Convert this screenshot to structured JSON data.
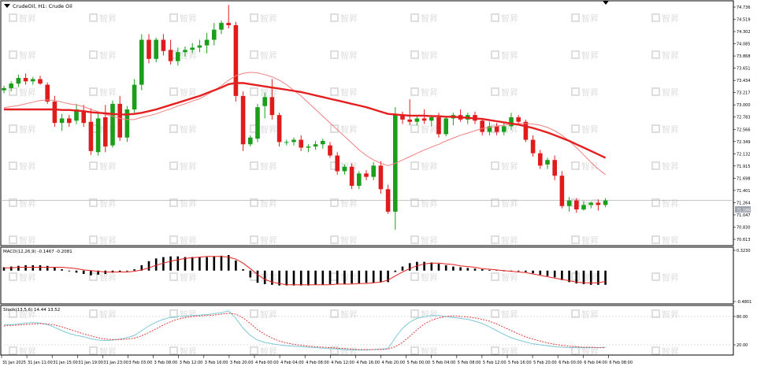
{
  "symbol_title": "CrudeOil, H1: Crude Oil",
  "macd_label": "MACD(12,26,9) -0.1467 -0.2081",
  "stoch_label": "Stoch(13,5,6) 14.44 13.52",
  "watermark_text": "智昇",
  "colors": {
    "bull": "#1b9e1b",
    "bear": "#e01b1b",
    "ma_thick": "#e51f1f",
    "ma_thin": "#f08080",
    "macd_hist": "#000000",
    "macd_signal": "#e51f1f",
    "stoch_main": "#7fc8d8",
    "stoch_signal": "#e04040",
    "watermark": "#dedede",
    "price_box": "#9ea4ad"
  },
  "price_box_label": "71.186",
  "chart_data": [
    {
      "type": "candlestick",
      "name": "price",
      "ylim": [
        70.45,
        74.78
      ],
      "y_ticks": [
        "74.736",
        "74.519",
        "74.302",
        "74.085",
        "73.868",
        "73.651",
        "73.434",
        "73.217",
        "73.000",
        "72.783",
        "72.566",
        "72.349",
        "72.132",
        "71.915",
        "71.698",
        "71.401",
        "71.264",
        "71.047",
        "70.830",
        "70.613"
      ],
      "x_ticks": [
        "31 Jan 2025",
        "31 Jan 11:00",
        "31 Jan 15:00",
        "31 Jan 19:00",
        "31 Jan 23:00",
        "3 Feb 03:00",
        "3 Feb 08:00",
        "3 Feb 12:00",
        "3 Feb 16:00",
        "3 Feb 20:00",
        "4 Feb 00:00",
        "4 Feb 04:00",
        "4 Feb 08:00",
        "4 Feb 12:00",
        "4 Feb 16:00",
        "4 Feb 20:00",
        "5 Feb 00:00",
        "5 Feb 04:00",
        "5 Feb 08:00",
        "5 Feb 12:00",
        "5 Feb 16:00",
        "5 Feb 20:00",
        "6 Feb 00:00",
        "6 Feb 04:00",
        "6 Feb 08:00"
      ],
      "candles": [
        [
          73.2,
          73.28,
          73.15,
          73.24
        ],
        [
          73.24,
          73.36,
          73.18,
          73.32
        ],
        [
          73.32,
          73.48,
          73.26,
          73.42
        ],
        [
          73.42,
          73.5,
          73.3,
          73.36
        ],
        [
          73.36,
          73.44,
          73.3,
          73.4
        ],
        [
          73.4,
          73.46,
          73.3,
          73.32
        ],
        [
          73.3,
          73.34,
          72.96,
          73.0
        ],
        [
          73.0,
          73.1,
          72.55,
          72.62
        ],
        [
          72.62,
          72.78,
          72.48,
          72.7
        ],
        [
          72.7,
          72.76,
          72.55,
          72.62
        ],
        [
          72.66,
          72.96,
          72.6,
          72.86
        ],
        [
          72.84,
          72.94,
          72.55,
          72.62
        ],
        [
          72.64,
          72.88,
          72.05,
          72.12
        ],
        [
          72.1,
          72.8,
          72.04,
          72.7
        ],
        [
          72.72,
          72.94,
          72.1,
          72.2
        ],
        [
          72.22,
          73.02,
          72.18,
          72.96
        ],
        [
          72.96,
          73.1,
          72.3,
          72.36
        ],
        [
          72.36,
          72.92,
          72.28,
          72.86
        ],
        [
          72.86,
          73.4,
          72.8,
          73.3
        ],
        [
          73.3,
          74.2,
          73.2,
          74.1
        ],
        [
          74.1,
          74.2,
          73.68,
          73.76
        ],
        [
          73.76,
          74.14,
          73.7,
          74.1
        ],
        [
          74.1,
          74.2,
          73.82,
          73.9
        ],
        [
          73.92,
          74.1,
          73.66,
          73.72
        ],
        [
          73.72,
          73.96,
          73.64,
          73.88
        ],
        [
          73.88,
          73.98,
          73.8,
          73.92
        ],
        [
          73.92,
          74.04,
          73.86,
          73.96
        ],
        [
          73.96,
          74.1,
          73.88,
          74.0
        ],
        [
          74.0,
          74.22,
          73.86,
          74.1
        ],
        [
          74.1,
          74.4,
          74.0,
          74.28
        ],
        [
          74.28,
          74.44,
          74.2,
          74.4
        ],
        [
          74.4,
          74.72,
          74.3,
          74.36
        ],
        [
          74.36,
          74.42,
          73.0,
          73.1
        ],
        [
          73.1,
          73.18,
          72.12,
          72.24
        ],
        [
          72.24,
          72.4,
          72.2,
          72.36
        ],
        [
          72.34,
          72.96,
          72.28,
          72.9
        ],
        [
          72.92,
          73.16,
          72.7,
          73.08
        ],
        [
          73.08,
          73.4,
          72.68,
          72.76
        ],
        [
          72.76,
          72.8,
          72.2,
          72.28
        ],
        [
          72.28,
          72.32,
          72.22,
          72.28
        ],
        [
          72.28,
          72.36,
          72.22,
          72.32
        ],
        [
          72.32,
          72.4,
          72.12,
          72.18
        ],
        [
          72.18,
          72.24,
          72.1,
          72.2
        ],
        [
          72.2,
          72.3,
          72.14,
          72.24
        ],
        [
          72.24,
          72.34,
          72.16,
          72.3
        ],
        [
          72.22,
          72.28,
          72.0,
          72.04
        ],
        [
          72.04,
          72.1,
          71.7,
          71.76
        ],
        [
          71.76,
          71.88,
          71.7,
          71.84
        ],
        [
          71.84,
          71.9,
          71.44,
          71.5
        ],
        [
          71.5,
          71.76,
          71.44,
          71.72
        ],
        [
          71.72,
          71.78,
          71.6,
          71.66
        ],
        [
          71.66,
          71.92,
          71.6,
          71.86
        ],
        [
          71.86,
          71.94,
          71.36,
          71.44
        ],
        [
          71.44,
          71.52,
          71.0,
          71.04
        ],
        [
          71.04,
          72.9,
          70.72,
          72.76
        ],
        [
          72.76,
          72.82,
          72.6,
          72.68
        ],
        [
          72.68,
          73.04,
          72.58,
          72.64
        ],
        [
          72.64,
          72.74,
          72.58,
          72.7
        ],
        [
          72.7,
          72.86,
          72.6,
          72.66
        ],
        [
          72.66,
          72.76,
          72.56,
          72.72
        ],
        [
          72.72,
          72.8,
          72.36,
          72.42
        ],
        [
          72.42,
          72.74,
          72.38,
          72.7
        ],
        [
          72.7,
          72.8,
          72.58,
          72.76
        ],
        [
          72.76,
          72.86,
          72.64,
          72.68
        ],
        [
          72.68,
          72.8,
          72.6,
          72.76
        ],
        [
          72.76,
          72.82,
          72.6,
          72.66
        ],
        [
          72.66,
          72.7,
          72.4,
          72.46
        ],
        [
          72.46,
          72.64,
          72.4,
          72.56
        ],
        [
          72.56,
          72.62,
          72.4,
          72.46
        ],
        [
          72.46,
          72.64,
          72.4,
          72.56
        ],
        [
          72.56,
          72.8,
          72.5,
          72.72
        ],
        [
          72.72,
          72.76,
          72.6,
          72.64
        ],
        [
          72.64,
          72.68,
          72.28,
          72.32
        ],
        [
          72.32,
          72.4,
          72.02,
          72.08
        ],
        [
          72.08,
          72.14,
          71.8,
          71.86
        ],
        [
          71.88,
          72.0,
          71.8,
          71.96
        ],
        [
          71.96,
          72.04,
          71.6,
          71.68
        ],
        [
          71.68,
          71.76,
          71.1,
          71.14
        ],
        [
          71.14,
          71.3,
          71.04,
          71.24
        ],
        [
          71.24,
          71.28,
          71.02,
          71.08
        ],
        [
          71.08,
          71.22,
          71.06,
          71.16
        ],
        [
          71.16,
          71.22,
          71.1,
          71.2
        ],
        [
          71.2,
          71.26,
          71.06,
          71.16
        ],
        [
          71.16,
          71.28,
          71.12,
          71.24
        ]
      ],
      "ma_slow": [
        72.86,
        72.86,
        72.86,
        72.86,
        72.86,
        72.86,
        72.86,
        72.86,
        72.85,
        72.85,
        72.84,
        72.83,
        72.81,
        72.8,
        72.79,
        72.78,
        72.77,
        72.77,
        72.78,
        72.8,
        72.83,
        72.86,
        72.9,
        72.94,
        72.98,
        73.02,
        73.06,
        73.1,
        73.15,
        73.2,
        73.25,
        73.31,
        73.33,
        73.33,
        73.31,
        73.29,
        73.27,
        73.25,
        73.23,
        73.21,
        73.19,
        73.17,
        73.14,
        73.11,
        73.08,
        73.05,
        73.02,
        72.99,
        72.96,
        72.93,
        72.9,
        72.86,
        72.82,
        72.78,
        72.77,
        72.76,
        72.75,
        72.75,
        72.75,
        72.74,
        72.74,
        72.73,
        72.73,
        72.72,
        72.71,
        72.7,
        72.69,
        72.67,
        72.65,
        72.63,
        72.61,
        72.59,
        72.56,
        72.53,
        72.49,
        72.45,
        72.4,
        72.35,
        72.3,
        72.24,
        72.18,
        72.12,
        72.06,
        72.0
      ],
      "ma_fast": [
        72.89,
        72.91,
        72.93,
        72.96,
        72.99,
        73.02,
        73.03,
        73.02,
        72.99,
        72.96,
        72.94,
        72.91,
        72.86,
        72.82,
        72.77,
        72.74,
        72.7,
        72.68,
        72.68,
        72.72,
        72.75,
        72.78,
        72.83,
        72.87,
        72.92,
        72.96,
        73.01,
        73.05,
        73.12,
        73.2,
        73.28,
        73.38,
        73.46,
        73.5,
        73.52,
        73.51,
        73.48,
        73.44,
        73.38,
        73.3,
        73.2,
        73.1,
        72.98,
        72.86,
        72.74,
        72.62,
        72.5,
        72.38,
        72.26,
        72.14,
        72.04,
        71.96,
        71.9,
        71.86,
        71.9,
        71.96,
        72.02,
        72.08,
        72.14,
        72.19,
        72.24,
        72.3,
        72.35,
        72.4,
        72.44,
        72.48,
        72.52,
        72.54,
        72.56,
        72.58,
        72.6,
        72.61,
        72.61,
        72.6,
        72.58,
        72.54,
        72.48,
        72.4,
        72.3,
        72.18,
        72.05,
        71.92,
        71.8,
        71.7
      ]
    },
    {
      "type": "bar+line",
      "name": "MACD",
      "ylim": [
        -0.4801,
        0.323
      ],
      "y_ticks": [
        "0.3230",
        "-0.4801"
      ],
      "histogram": [
        0.05,
        0.06,
        0.07,
        0.08,
        0.08,
        0.08,
        0.07,
        0.05,
        0.02,
        -0.01,
        -0.03,
        -0.05,
        -0.07,
        -0.06,
        -0.05,
        -0.03,
        -0.02,
        -0.01,
        0.02,
        0.08,
        0.14,
        0.18,
        0.2,
        0.21,
        0.21,
        0.2,
        0.2,
        0.2,
        0.2,
        0.21,
        0.22,
        0.23,
        0.15,
        0.02,
        -0.1,
        -0.18,
        -0.2,
        -0.21,
        -0.22,
        -0.22,
        -0.22,
        -0.22,
        -0.22,
        -0.21,
        -0.21,
        -0.2,
        -0.2,
        -0.2,
        -0.19,
        -0.19,
        -0.18,
        -0.18,
        -0.17,
        -0.17,
        -0.02,
        0.06,
        0.11,
        0.13,
        0.13,
        0.12,
        0.1,
        0.08,
        0.06,
        0.05,
        0.04,
        0.03,
        0.02,
        0.01,
        0.01,
        0.0,
        0.0,
        -0.01,
        -0.02,
        -0.04,
        -0.06,
        -0.08,
        -0.1,
        -0.14,
        -0.17,
        -0.19,
        -0.2,
        -0.21,
        -0.21,
        -0.21
      ],
      "signal": [
        0.04,
        0.04,
        0.05,
        0.05,
        0.05,
        0.05,
        0.05,
        0.05,
        0.05,
        0.04,
        0.03,
        0.01,
        0.0,
        -0.01,
        -0.02,
        -0.02,
        -0.02,
        -0.02,
        -0.01,
        0.01,
        0.04,
        0.08,
        0.11,
        0.14,
        0.16,
        0.18,
        0.19,
        0.2,
        0.21,
        0.21,
        0.21,
        0.2,
        0.17,
        0.11,
        0.03,
        -0.06,
        -0.13,
        -0.17,
        -0.19,
        -0.21,
        -0.21,
        -0.21,
        -0.21,
        -0.21,
        -0.21,
        -0.21,
        -0.2,
        -0.2,
        -0.2,
        -0.19,
        -0.19,
        -0.18,
        -0.17,
        -0.14,
        -0.08,
        -0.02,
        0.03,
        0.07,
        0.1,
        0.11,
        0.11,
        0.1,
        0.09,
        0.07,
        0.06,
        0.05,
        0.03,
        0.02,
        0.01,
        0.0,
        -0.01,
        -0.02,
        -0.03,
        -0.05,
        -0.07,
        -0.09,
        -0.11,
        -0.13,
        -0.15,
        -0.17,
        -0.18,
        -0.18,
        -0.18,
        -0.16
      ]
    },
    {
      "type": "line",
      "name": "Stoch",
      "ylim": [
        0,
        100
      ],
      "y_ticks": [
        "80.00",
        "20.00"
      ],
      "main": [
        62,
        63,
        64,
        66,
        67,
        66,
        63,
        57,
        50,
        44,
        40,
        37,
        33,
        30,
        29,
        30,
        32,
        35,
        40,
        50,
        60,
        68,
        74,
        78,
        80,
        81,
        82,
        83,
        84,
        86,
        88,
        92,
        76,
        55,
        40,
        30,
        25,
        22,
        20,
        18,
        17,
        16,
        15,
        14,
        13,
        12,
        11,
        10,
        9,
        9,
        9,
        10,
        11,
        12,
        35,
        55,
        68,
        76,
        80,
        82,
        82,
        80,
        78,
        76,
        74,
        70,
        65,
        58,
        50,
        42,
        35,
        30,
        26,
        22,
        20,
        18,
        16,
        15,
        14,
        14,
        14,
        14,
        14,
        15
      ],
      "signal": [
        60,
        61,
        62,
        63,
        64,
        65,
        64,
        62,
        58,
        53,
        48,
        43,
        39,
        35,
        32,
        31,
        31,
        32,
        34,
        39,
        46,
        54,
        62,
        69,
        74,
        78,
        80,
        81,
        82,
        83,
        85,
        87,
        85,
        77,
        65,
        52,
        42,
        34,
        28,
        24,
        21,
        19,
        17,
        16,
        15,
        14,
        13,
        12,
        11,
        10,
        10,
        10,
        10,
        11,
        16,
        25,
        38,
        52,
        64,
        72,
        77,
        80,
        81,
        80,
        79,
        77,
        74,
        70,
        64,
        57,
        50,
        43,
        37,
        32,
        28,
        24,
        21,
        19,
        17,
        16,
        15,
        15,
        14,
        14
      ]
    }
  ]
}
